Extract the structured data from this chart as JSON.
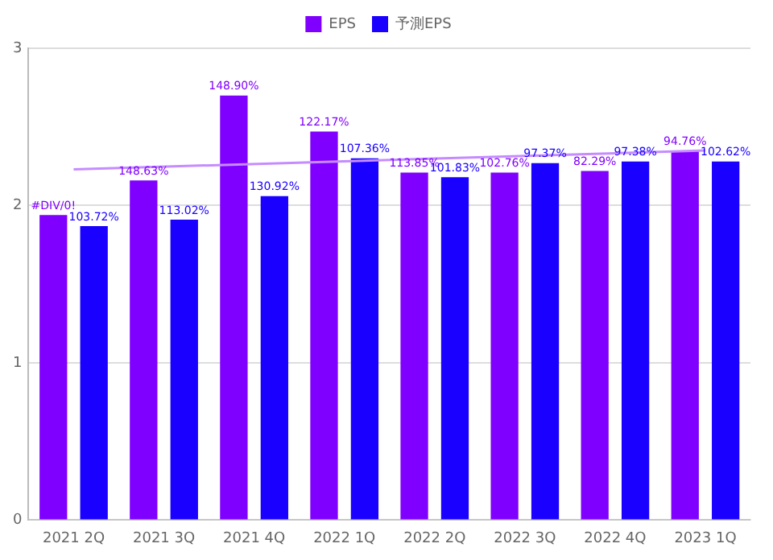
{
  "chart_data": {
    "type": "bar",
    "categories": [
      "2021 2Q",
      "2021 3Q",
      "2021 4Q",
      "2022 1Q",
      "2022 2Q",
      "2022 3Q",
      "2022 4Q",
      "2023 1Q"
    ],
    "series": [
      {
        "name": "EPS",
        "color": "#8000ff",
        "values": [
          1.94,
          2.16,
          2.7,
          2.47,
          2.21,
          2.21,
          2.22,
          2.35
        ]
      },
      {
        "name": "予測EPS",
        "color": "#1a00ff",
        "values": [
          1.87,
          1.91,
          2.06,
          2.3,
          2.18,
          2.27,
          2.28,
          2.28
        ]
      },
      {
        "type": "line",
        "color": "#c58cff",
        "x": [
          "2021 2Q",
          "2023 1Q"
        ],
        "values": [
          2.23,
          2.35
        ]
      }
    ],
    "annotations": [
      {
        "text": "#DIV/0!",
        "x": "2021 2Q",
        "y": 1.94
      },
      {
        "text": "148.63%",
        "x": "2021 3Q",
        "y": 2.16
      },
      {
        "text": "148.90%",
        "x": "2021 4Q",
        "y": 2.7
      },
      {
        "text": "122.17%",
        "x": "2022 1Q",
        "y": 2.47
      },
      {
        "text": "113.85%",
        "x": "2022 2Q",
        "y": 2.21
      },
      {
        "text": "102.76%",
        "x": "2022 3Q",
        "y": 2.21
      },
      {
        "text": "82.29%",
        "x": "2022 4Q",
        "y": 2.22
      },
      {
        "text": "94.76%",
        "x": "2023 1Q",
        "y": 2.35
      },
      {
        "text": "103.72%",
        "x": "2021 2Q",
        "y": 1.87
      },
      {
        "text": "113.02%",
        "x": "2021 3Q",
        "y": 1.91
      },
      {
        "text": "130.92%",
        "x": "2021 4Q",
        "y": 2.06
      },
      {
        "text": "107.36%",
        "x": "2022 1Q",
        "y": 2.3
      },
      {
        "text": "101.83%",
        "x": "2022 2Q",
        "y": 2.18
      },
      {
        "text": "97.37%",
        "x": "2022 3Q",
        "y": 2.27
      },
      {
        "text": "97.38%",
        "x": "2022 4Q",
        "y": 2.28
      },
      {
        "text": "102.62%",
        "x": "2023 1Q",
        "y": 2.28
      }
    ],
    "ylim": [
      0,
      3
    ],
    "yticks": [
      0,
      1,
      2,
      3
    ],
    "grid": "y",
    "legend": "top"
  }
}
